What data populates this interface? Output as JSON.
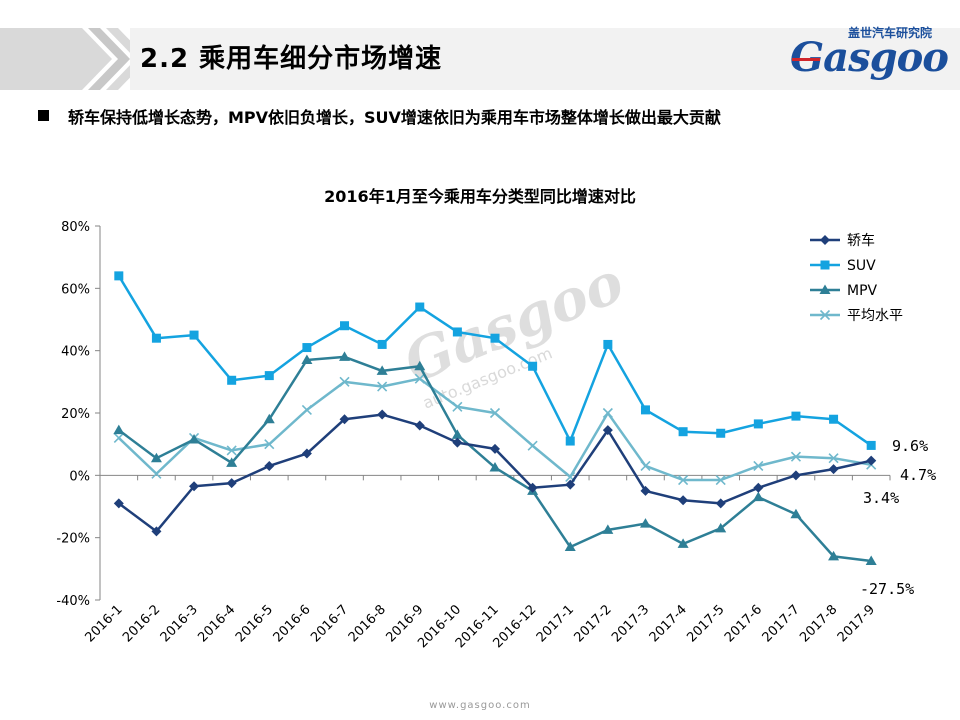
{
  "header": {
    "section_title": "2.2 乘用车细分市场增速",
    "logo_cn": "盖世汽车研究院",
    "logo_en": "Gasgoo"
  },
  "bullet": {
    "text": "轿车保持低增长态势，MPV依旧负增长，SUV增速依旧为乘用车市场整体增长做出最大贡献"
  },
  "watermark": {
    "text": "Gasgoo",
    "url": "auto.gasgoo.com"
  },
  "footer": {
    "url": "www.gasgoo.com"
  },
  "colors": {
    "sedan": "#1f3f7a",
    "suv": "#14a3e0",
    "mpv": "#2e7f96",
    "avg": "#6fb8cc",
    "chevron": "#d9d9d9"
  },
  "chart_data": {
    "type": "line",
    "title": "2016年1月至今乘用车分类型同比增速对比",
    "xlabel": "",
    "ylabel": "",
    "ylim": [
      -40,
      80
    ],
    "yticks": [
      "80%",
      "60%",
      "40%",
      "20%",
      "0%",
      "-20%",
      "-40%"
    ],
    "ytick_values": [
      80,
      60,
      40,
      20,
      0,
      -20,
      -40
    ],
    "categories": [
      "2016-1",
      "2016-2",
      "2016-3",
      "2016-4",
      "2016-5",
      "2016-6",
      "2016-7",
      "2016-8",
      "2016-9",
      "2016-10",
      "2016-11",
      "2016-12",
      "2017-1",
      "2017-2",
      "2017-3",
      "2017-4",
      "2017-5",
      "2017-6",
      "2017-7",
      "2017-8",
      "2017-9"
    ],
    "legend_position": "top-right",
    "series": [
      {
        "name": "轿车",
        "marker": "diamond",
        "color": "#1f3f7a",
        "values": [
          -9,
          -18,
          -3.5,
          -2.5,
          3,
          7,
          18,
          19.5,
          16,
          10.5,
          8.5,
          -4,
          -3,
          14.5,
          -5,
          -8,
          -9,
          -4,
          0,
          2,
          4.7
        ]
      },
      {
        "name": "SUV",
        "marker": "square",
        "color": "#14a3e0",
        "values": [
          64,
          44,
          45,
          30.5,
          32,
          41,
          48,
          42,
          54,
          46,
          44,
          35,
          11,
          42,
          21,
          14,
          13.5,
          16.5,
          19,
          18,
          9.6
        ]
      },
      {
        "name": "MPV",
        "marker": "triangle",
        "color": "#2e7f96",
        "values": [
          14.5,
          5.5,
          11.5,
          4,
          18,
          37,
          38,
          33.5,
          35,
          13,
          2.5,
          -5,
          -23,
          -17.5,
          -15.5,
          -22,
          -17,
          -7,
          -12.5,
          -26,
          -27.5
        ]
      },
      {
        "name": "平均水平",
        "marker": "x",
        "color": "#6fb8cc",
        "values": [
          12,
          0.5,
          12,
          8,
          10,
          21,
          30,
          28.5,
          31,
          22,
          20,
          9.5,
          -0.5,
          20,
          3,
          -1.5,
          -1.5,
          3,
          6,
          5.5,
          3.4
        ]
      }
    ],
    "annotations": [
      "9.6%",
      "4.7%",
      "3.4%",
      "-27.5%"
    ]
  }
}
